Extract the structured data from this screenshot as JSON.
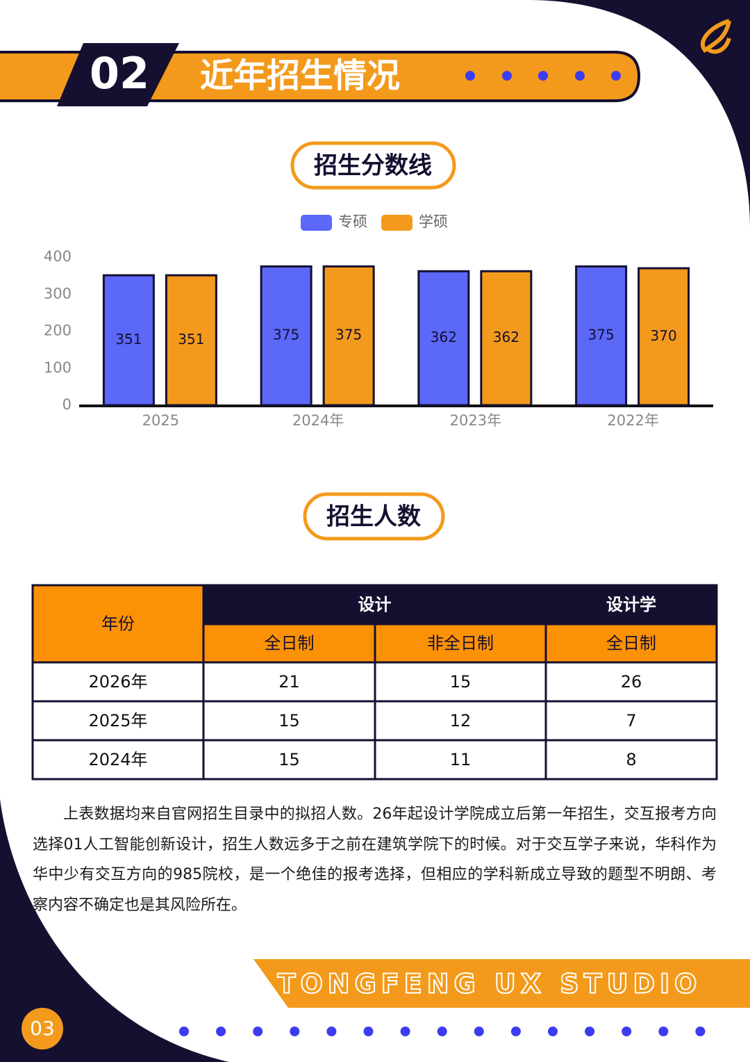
{
  "header": {
    "number": "02",
    "title": "近年招生情况"
  },
  "chart_data": {
    "type": "bar",
    "title": "招生分数线",
    "categories": [
      "2025",
      "2024年",
      "2023年",
      "2022年"
    ],
    "series": [
      {
        "name": "专硕",
        "color": "#5b68f8",
        "values": [
          351,
          375,
          362,
          375
        ]
      },
      {
        "name": "学硕",
        "color": "#f39a1c",
        "values": [
          351,
          375,
          362,
          370
        ]
      }
    ],
    "ylim": [
      0,
      400
    ],
    "yticks": [
      0,
      100,
      200,
      300,
      400
    ],
    "legend": "top"
  },
  "table": {
    "title": "招生人数",
    "header": [
      "年份",
      "设计",
      "设计学"
    ],
    "subheader": [
      "全日制",
      "非全日制",
      "全日制"
    ],
    "rows": [
      [
        "2026年",
        "21",
        "15",
        "26"
      ],
      [
        "2025年",
        "15",
        "12",
        "7"
      ],
      [
        "2024年",
        "15",
        "11",
        "8"
      ]
    ]
  },
  "paragraph": "上表数据均来自官网招生目录中的拟招人数。26年起设计学院成立后第一年招生，交互报考方向选择01人工智能创新设计，招生人数远多于之前在建筑学院下的时候。对于交互学子来说，华科作为华中少有交互方向的985院校，是一个绝佳的报考选择，但相应的学科新成立导致的题型不明朗、考察内容不确定也是其风险所在。",
  "footer": {
    "brand": "TONGFENG UX STUDIO",
    "page": "03"
  }
}
